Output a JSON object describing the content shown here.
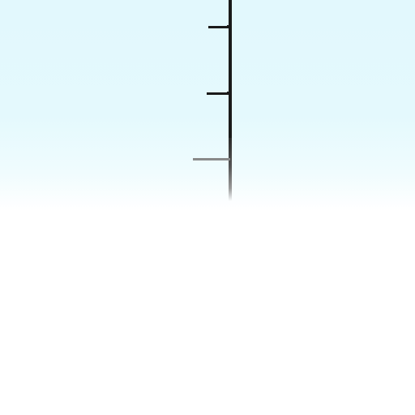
{
  "scene": {
    "sky_color": "#e2f8fd",
    "background_color": "#ffffff",
    "line_color": "#1a1a1a",
    "faded_line_color": "#8a8a8a"
  }
}
